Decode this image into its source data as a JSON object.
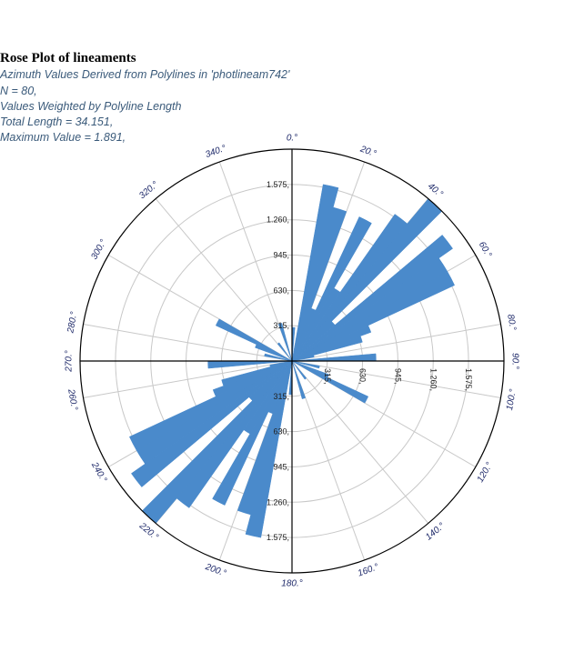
{
  "chart_data": {
    "type": "rose",
    "title": "Rose Plot of lineaments",
    "subtitles": [
      "Azimuth Values Derived from Polylines in 'photlineam742'",
      "N = 80,",
      "Values Weighted by Polyline Length",
      "Total Length = 34.151,",
      "Maximum Value = 1.891,"
    ],
    "bin_width_deg": 5,
    "radial_max": 1.891,
    "ring_values": [
      0.315,
      0.63,
      0.945,
      1.26,
      1.575
    ],
    "ring_labels": [
      "315,",
      "630,",
      "945,",
      "1.260,",
      "1.575,"
    ],
    "azimuth_labels": [
      "0.°",
      "20.°",
      "40.°",
      "60.°",
      "80.°",
      "90.°",
      "100.°",
      "120.°",
      "140.°",
      "160.°",
      "180.°",
      "200.°",
      "220.°",
      "240.°",
      "260.°",
      "270.°",
      "280.°",
      "300.°",
      "320.°",
      "340.°"
    ],
    "azimuth_values": [
      0,
      20,
      40,
      60,
      80,
      90,
      100,
      120,
      140,
      160,
      180,
      200,
      220,
      240,
      260,
      270,
      280,
      300,
      320,
      340
    ],
    "bins": [
      {
        "start": 0,
        "value": 0.3
      },
      {
        "start": 10,
        "value": 1.6
      },
      {
        "start": 15,
        "value": 1.42
      },
      {
        "start": 20,
        "value": 0.5
      },
      {
        "start": 25,
        "value": 1.42
      },
      {
        "start": 30,
        "value": 0.75
      },
      {
        "start": 35,
        "value": 1.6
      },
      {
        "start": 40,
        "value": 1.89
      },
      {
        "start": 45,
        "value": 0.5
      },
      {
        "start": 50,
        "value": 1.75
      },
      {
        "start": 55,
        "value": 1.6
      },
      {
        "start": 60,
        "value": 1.6
      },
      {
        "start": 65,
        "value": 0.75
      },
      {
        "start": 70,
        "value": 0.65
      },
      {
        "start": 75,
        "value": 0.2
      },
      {
        "start": 85,
        "value": 0.75
      },
      {
        "start": 100,
        "value": 0.25
      },
      {
        "start": 110,
        "value": 0.35
      },
      {
        "start": 115,
        "value": 0.75
      },
      {
        "start": 140,
        "value": 0.2
      },
      {
        "start": 160,
        "value": 0.35
      },
      {
        "start": 180,
        "value": 0.3
      },
      {
        "start": 190,
        "value": 1.6
      },
      {
        "start": 195,
        "value": 1.42
      },
      {
        "start": 200,
        "value": 0.5
      },
      {
        "start": 205,
        "value": 1.42
      },
      {
        "start": 210,
        "value": 0.75
      },
      {
        "start": 215,
        "value": 1.6
      },
      {
        "start": 220,
        "value": 1.89
      },
      {
        "start": 225,
        "value": 0.5
      },
      {
        "start": 230,
        "value": 1.75
      },
      {
        "start": 235,
        "value": 1.6
      },
      {
        "start": 240,
        "value": 1.6
      },
      {
        "start": 245,
        "value": 0.75
      },
      {
        "start": 250,
        "value": 0.65
      },
      {
        "start": 255,
        "value": 0.2
      },
      {
        "start": 265,
        "value": 0.75
      },
      {
        "start": 280,
        "value": 0.25
      },
      {
        "start": 290,
        "value": 0.35
      },
      {
        "start": 295,
        "value": 0.75
      },
      {
        "start": 320,
        "value": 0.2
      },
      {
        "start": 340,
        "value": 0.35
      }
    ],
    "grid": true,
    "colors": {
      "bar": "#4a8acb",
      "grid": "#c8c8c8",
      "axis": "#000000"
    }
  }
}
